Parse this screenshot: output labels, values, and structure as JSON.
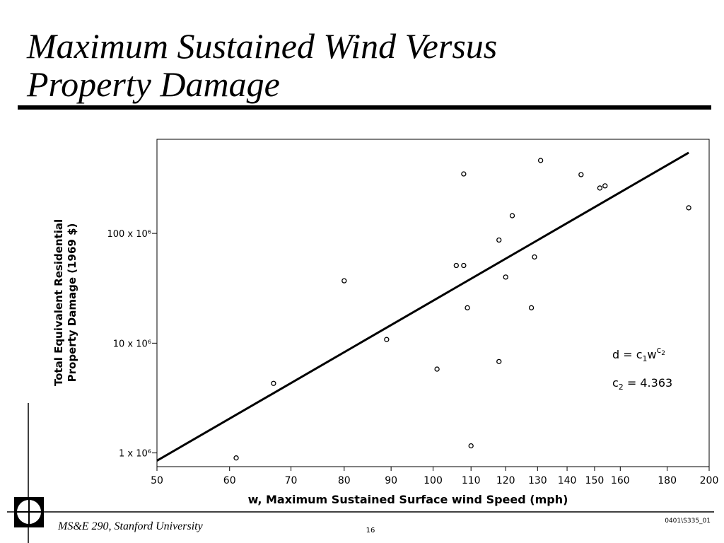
{
  "slide": {
    "title": [
      "Maximum Sustained Wind Versus",
      "Property Damage"
    ],
    "footer": "MS&E 290, Stanford University",
    "page": "16",
    "code": "0401\\S335_01"
  },
  "chart_data": {
    "type": "scatter",
    "xlabel": "w, Maximum Sustained Surface wind Speed (mph)",
    "ylabel": [
      "Total Equivalent Residential",
      "Property Damage (1969 $)"
    ],
    "xscale": "log",
    "yscale": "log",
    "xlim": [
      50,
      200
    ],
    "ylim": [
      750000,
      720000000
    ],
    "xticks": [
      50,
      60,
      70,
      80,
      90,
      100,
      110,
      120,
      130,
      140,
      150,
      160,
      180,
      200
    ],
    "yticks": [
      {
        "value": 1000000,
        "label": "1 x 10⁶"
      },
      {
        "value": 10000000,
        "label": "10 x 10⁶"
      },
      {
        "value": 100000000,
        "label": "100 x 10⁶"
      }
    ],
    "color": "#000000",
    "x": [
      61,
      67,
      80,
      89,
      101,
      106,
      108,
      108,
      109,
      110,
      118,
      118,
      120,
      122,
      128,
      129,
      131,
      145,
      152,
      154,
      190
    ],
    "values": [
      900000,
      4300000,
      37000000,
      10800000,
      5800000,
      51000000,
      51000000,
      348000000,
      21000000,
      1160000,
      6800000,
      87000000,
      40000000,
      145000000,
      21000000,
      61000000,
      462000000,
      343000000,
      259000000,
      271000000,
      171000000
    ],
    "fit": {
      "x": [
        50,
        190
      ],
      "values": [
        850000,
        544000000
      ]
    },
    "equation": [
      "d = c",
      "1",
      "w",
      "c",
      "2"
    ],
    "coefficient": [
      "c",
      "2",
      " = 4.363"
    ]
  }
}
